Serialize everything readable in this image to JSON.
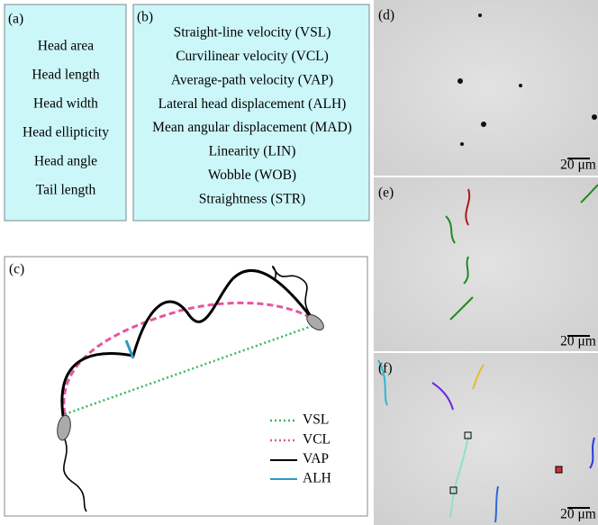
{
  "panel_a": {
    "label": "(a)",
    "items": [
      "Head area",
      "Head length",
      "Head width",
      "Head ellipticity",
      "Head angle",
      "Tail length"
    ]
  },
  "panel_b": {
    "label": "(b)",
    "items": [
      "Straight-line velocity (VSL)",
      "Curvilinear velocity (VCL)",
      "Average-path velocity (VAP)",
      "Lateral head displacement (ALH)",
      "Mean angular displacement (MAD)",
      "Linearity (LIN)",
      "Wobble (WOB)",
      "Straightness (STR)"
    ]
  },
  "panel_c": {
    "label": "(c)",
    "legend": [
      "VSL",
      "VCL",
      "VAP",
      "ALH"
    ]
  },
  "panel_d": {
    "label": "(d)",
    "scale_bar": "20 μm"
  },
  "panel_e": {
    "label": "(e)",
    "scale_bar": "20 μm"
  },
  "panel_f": {
    "label": "(f)",
    "scale_bar": "20 μm"
  }
}
